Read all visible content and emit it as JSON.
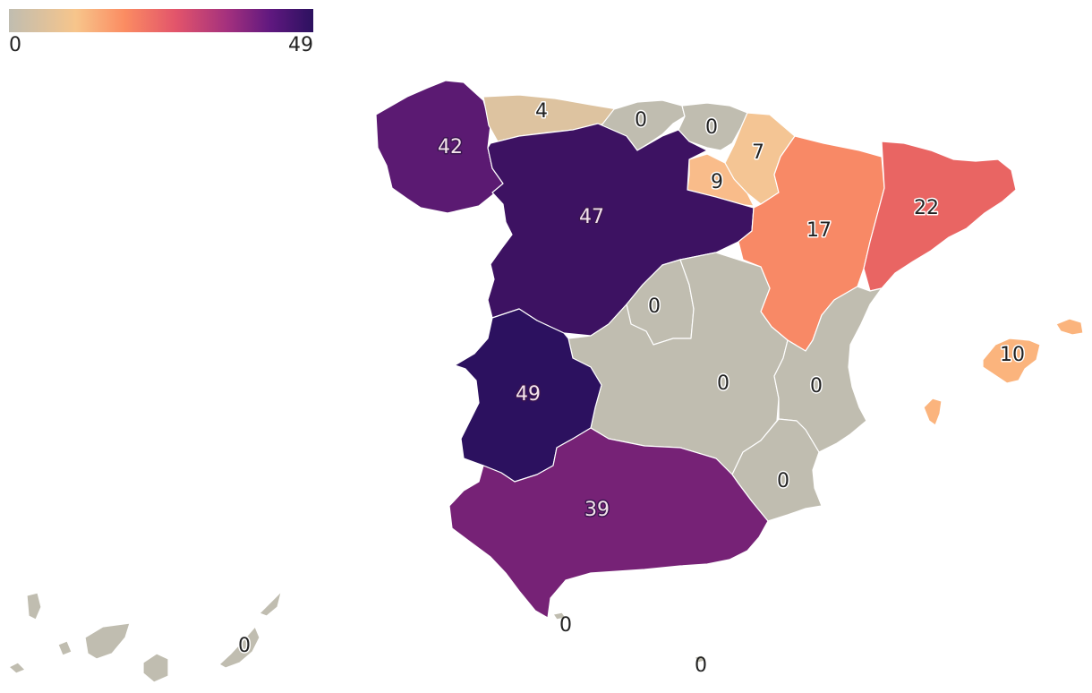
{
  "legend": {
    "min_label": "0",
    "max_label": "49",
    "colors": [
      "#c0bdb0",
      "#f7c58b",
      "#fb8c62",
      "#e2546b",
      "#a3307e",
      "#5f187f",
      "#2c115f"
    ]
  },
  "regions": [
    {
      "id": "asturias",
      "value": "4",
      "color": "#ddc3a0"
    },
    {
      "id": "cantabria",
      "value": "0",
      "color": "#c0bdb0"
    },
    {
      "id": "pais-vasco",
      "value": "0",
      "color": "#c0bdb0"
    },
    {
      "id": "navarra",
      "value": "7",
      "color": "#f4c594"
    },
    {
      "id": "la-rioja",
      "value": "9",
      "color": "#f9bc8a"
    },
    {
      "id": "galicia",
      "value": "42",
      "color": "#5b1a72"
    },
    {
      "id": "castilla-y-leon",
      "value": "47",
      "color": "#3d1262"
    },
    {
      "id": "aragon",
      "value": "17",
      "color": "#f88966"
    },
    {
      "id": "cataluna",
      "value": "22",
      "color": "#e96563"
    },
    {
      "id": "madrid",
      "value": "0",
      "color": "#c0bdb0"
    },
    {
      "id": "castilla-la-mancha",
      "value": "0",
      "color": "#c0bdb0"
    },
    {
      "id": "valencia",
      "value": "0",
      "color": "#c0bdb0"
    },
    {
      "id": "murcia",
      "value": "0",
      "color": "#c0bdb0"
    },
    {
      "id": "extremadura",
      "value": "49",
      "color": "#2c115f"
    },
    {
      "id": "andalucia",
      "value": "39",
      "color": "#762276"
    },
    {
      "id": "baleares",
      "value": "10",
      "color": "#fbb47d"
    },
    {
      "id": "canarias",
      "value": "0",
      "color": "#c0bdb0"
    },
    {
      "id": "ceuta",
      "value": "0",
      "color": "#c0bdb0"
    },
    {
      "id": "melilla",
      "value": "0",
      "color": "#c0bdb0"
    }
  ]
}
